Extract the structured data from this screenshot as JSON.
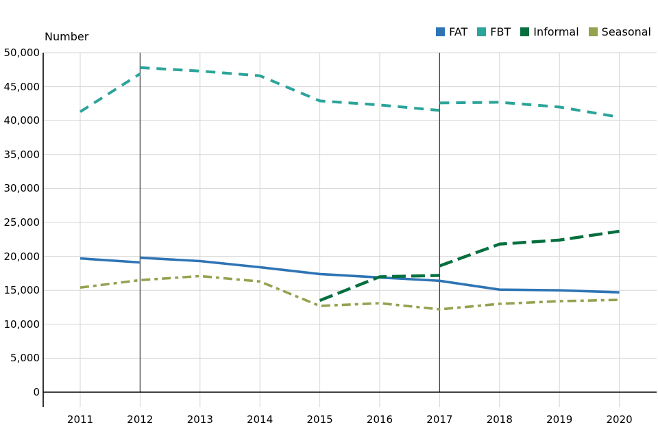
{
  "chart_data": {
    "type": "line",
    "ylabel": "Number",
    "ylim": [
      0,
      50000
    ],
    "grid": true,
    "legend_position": "top-right",
    "background_color": "#ffffff",
    "grid_color": "#d6d6d6",
    "axis_color": "#000000",
    "reference_line_color": "#404040",
    "reference_lines_x": [
      2012,
      2017
    ],
    "y_ticks": [
      {
        "value": 0,
        "label": "0"
      },
      {
        "value": 5000,
        "label": "5,000"
      },
      {
        "value": 10000,
        "label": "10,000"
      },
      {
        "value": 15000,
        "label": "15,000"
      },
      {
        "value": 20000,
        "label": "20,000"
      },
      {
        "value": 25000,
        "label": "25,000"
      },
      {
        "value": 30000,
        "label": "30,000"
      },
      {
        "value": 35000,
        "label": "35,000"
      },
      {
        "value": 40000,
        "label": "40,000"
      },
      {
        "value": 45000,
        "label": "45,000"
      },
      {
        "value": 50000,
        "label": "50,000"
      }
    ],
    "x_ticks": [
      {
        "value": 2011,
        "label": "2011"
      },
      {
        "value": 2012,
        "label": "2012"
      },
      {
        "value": 2013,
        "label": "2013"
      },
      {
        "value": 2014,
        "label": "2014"
      },
      {
        "value": 2015,
        "label": "2015"
      },
      {
        "value": 2016,
        "label": "2016"
      },
      {
        "value": 2017,
        "label": "2017"
      },
      {
        "value": 2018,
        "label": "2018"
      },
      {
        "value": 2019,
        "label": "2019"
      },
      {
        "value": 2020,
        "label": "2020"
      }
    ],
    "series": [
      {
        "name": "FAT",
        "color": "#2e74b5",
        "line_style": "solid",
        "note": "break at 2012 reference line",
        "segments": [
          [
            [
              2011,
              19700
            ],
            [
              2012,
              19100
            ]
          ],
          [
            [
              2012,
              19800
            ],
            [
              2013,
              19300
            ],
            [
              2014,
              18400
            ],
            [
              2015,
              17400
            ],
            [
              2016,
              16900
            ],
            [
              2017,
              16400
            ],
            [
              2018,
              15100
            ],
            [
              2019,
              15000
            ],
            [
              2020,
              14700
            ]
          ]
        ]
      },
      {
        "name": "FBT",
        "color": "#2ba49a",
        "line_style": "dashed",
        "note": "breaks at 2012 and 2017 reference lines",
        "segments": [
          [
            [
              2011,
              41300
            ],
            [
              2012,
              46900
            ]
          ],
          [
            [
              2012,
              47800
            ],
            [
              2013,
              47300
            ],
            [
              2014,
              46600
            ],
            [
              2015,
              42900
            ],
            [
              2016,
              42300
            ],
            [
              2017,
              41500
            ]
          ],
          [
            [
              2017,
              42600
            ],
            [
              2018,
              42700
            ],
            [
              2019,
              42000
            ],
            [
              2020,
              40500
            ]
          ]
        ]
      },
      {
        "name": "Informal",
        "color": "#056f3e",
        "line_style": "long-dash",
        "note": "starts 2015, break at 2017 reference line",
        "segments": [
          [
            [
              2015,
              13500
            ],
            [
              2016,
              17000
            ],
            [
              2017,
              17200
            ]
          ],
          [
            [
              2017,
              18600
            ],
            [
              2018,
              21800
            ],
            [
              2019,
              22400
            ],
            [
              2020,
              23700
            ]
          ]
        ]
      },
      {
        "name": "Seasonal",
        "color": "#95a14f",
        "line_style": "dash-dot",
        "segments": [
          [
            [
              2011,
              15400
            ],
            [
              2012,
              16500
            ],
            [
              2013,
              17100
            ],
            [
              2014,
              16300
            ],
            [
              2015,
              12700
            ],
            [
              2016,
              13100
            ],
            [
              2017,
              12200
            ],
            [
              2018,
              13000
            ],
            [
              2019,
              13400
            ],
            [
              2020,
              13600
            ]
          ]
        ]
      }
    ]
  }
}
